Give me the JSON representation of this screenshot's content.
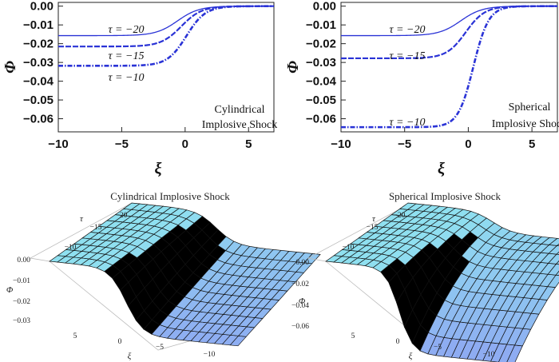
{
  "chart_data": [
    {
      "type": "line",
      "panel": "top-left",
      "xlabel": "ξ",
      "ylabel": "Φ",
      "xlim": [
        -10,
        7
      ],
      "ylim": [
        -0.067,
        0.002
      ],
      "xticks": [
        -10,
        -5,
        0,
        5
      ],
      "xtick_labels": [
        "−10",
        "−5",
        "0",
        "5"
      ],
      "yticks": [
        0.0,
        -0.01,
        -0.02,
        -0.03,
        -0.04,
        -0.05,
        -0.06
      ],
      "ytick_labels": [
        "0.00",
        "−0.01",
        "−0.02",
        "−0.03",
        "−0.04",
        "−0.05",
        "−0.06"
      ],
      "annotation_lines": [
        "Cylindrical",
        "Implosive Shock"
      ],
      "series": [
        {
          "name": "τ = −20",
          "tau": -20,
          "amplitude": -0.0157,
          "center": -0.6,
          "width": 0.85,
          "style": "solid"
        },
        {
          "name": "τ = −15",
          "tau": -15,
          "amplitude": -0.0215,
          "center": -0.3,
          "width": 0.8,
          "style": "dashed"
        },
        {
          "name": "τ = −10",
          "tau": -10,
          "amplitude": -0.0318,
          "center": 0.1,
          "width": 0.75,
          "style": "dashdot"
        }
      ]
    },
    {
      "type": "line",
      "panel": "top-right",
      "xlabel": "ξ",
      "ylabel": "Φ",
      "xlim": [
        -10,
        7
      ],
      "ylim": [
        -0.067,
        0.002
      ],
      "xticks": [
        -10,
        -5,
        0,
        5
      ],
      "xtick_labels": [
        "−10",
        "−5",
        "0",
        "5"
      ],
      "yticks": [
        0.0,
        -0.01,
        -0.02,
        -0.03,
        -0.04,
        -0.05,
        -0.06
      ],
      "ytick_labels": [
        "0.00",
        "−0.01",
        "−0.02",
        "−0.03",
        "−0.04",
        "−0.05",
        "−0.06"
      ],
      "annotation_lines": [
        "Spherical",
        "Implosive Shock"
      ],
      "series": [
        {
          "name": "τ = −20",
          "tau": -20,
          "amplitude": -0.0157,
          "center": -0.6,
          "width": 0.85,
          "style": "solid"
        },
        {
          "name": "τ = −15",
          "tau": -15,
          "amplitude": -0.0278,
          "center": -0.2,
          "width": 0.75,
          "style": "dashed"
        },
        {
          "name": "τ = −10",
          "tau": -10,
          "amplitude": -0.0645,
          "center": 0.4,
          "width": 0.6,
          "style": "dashdot"
        }
      ]
    },
    {
      "type": "surface",
      "panel": "bottom-left",
      "title": "Cylindrical Implosive Shock",
      "xlabel": "ξ",
      "ylabel": "τ",
      "zlabel": "Φ",
      "xlim": [
        -10,
        7
      ],
      "ylim": [
        -20,
        -10
      ],
      "zlim": [
        -0.035,
        0.0
      ],
      "xtick_labels": [
        "5",
        "0",
        "−5",
        "−10"
      ],
      "ytick_labels": [
        "−20",
        "−15",
        "−10"
      ],
      "ztick_labels": [
        "0.00",
        "−0.01",
        "−0.02",
        "−0.03"
      ]
    },
    {
      "type": "surface",
      "panel": "bottom-right",
      "title": "Spherical Implosive Shock",
      "xlabel": "ξ",
      "ylabel": "τ",
      "zlabel": "Φ",
      "xlim": [
        -10,
        7
      ],
      "ylim": [
        -20,
        -10
      ],
      "zlim": [
        -0.065,
        0.0
      ],
      "xtick_labels": [
        "5",
        "0",
        "−5",
        "−10"
      ],
      "ytick_labels": [
        "−20",
        "−15",
        "−10"
      ],
      "ztick_labels": [
        "0.00",
        "−0.02",
        "−0.04",
        "−0.06"
      ]
    }
  ],
  "colors": {
    "line": "#2a33d6",
    "surface_low": "#8ea8f2",
    "surface_high": "#8fe0f0",
    "surface_warm": "#f6d2b0",
    "mesh": "#111111",
    "box": "#bbbbbb"
  }
}
